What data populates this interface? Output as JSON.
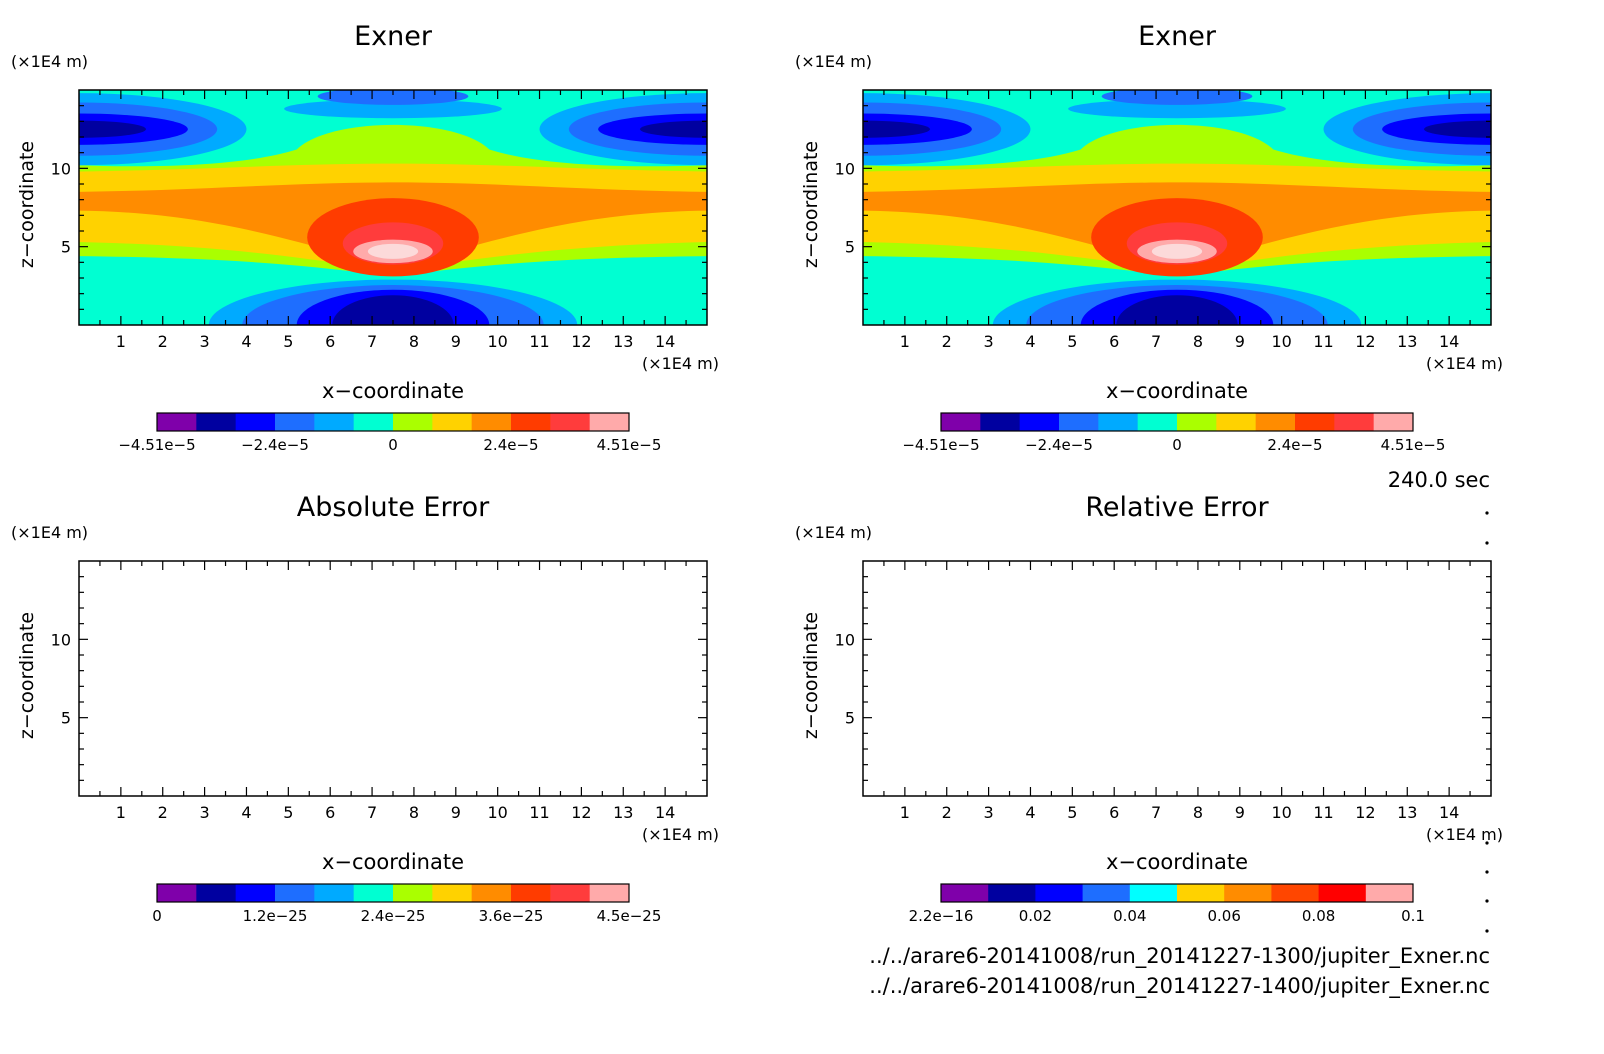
{
  "time_label": "240.0 sec",
  "file_labels": [
    "../../arare6-20141008/run_20141227-1300/jupiter_Exner.nc",
    "../../arare6-20141008/run_20141227-1400/jupiter_Exner.nc"
  ],
  "chart_data": [
    {
      "type": "heatmap",
      "title": "Exner",
      "xlabel": "x−coordinate",
      "ylabel": "z−coordinate",
      "x_unit": "(×1E4 m)",
      "y_unit": "(×1E4 m)",
      "xlim": [
        0,
        15
      ],
      "ylim": [
        0,
        15
      ],
      "x_ticks": [
        "1",
        "2",
        "3",
        "4",
        "5",
        "6",
        "7",
        "8",
        "9",
        "10",
        "11",
        "12",
        "13",
        "14"
      ],
      "y_ticks": [
        "5",
        "10"
      ],
      "colorbar": {
        "colors": [
          "#7f00aa",
          "#0000a0",
          "#0000ff",
          "#1e6eff",
          "#00aaff",
          "#00ffd2",
          "#aaff00",
          "#ffd200",
          "#ff8c00",
          "#ff3c00",
          "#ff3c3c",
          "#ffaaaa"
        ],
        "tick_labels": [
          "−4.51e−5",
          "−2.4e−5",
          "0",
          "2.4e−5",
          "4.51e−5"
        ]
      },
      "field": "filled"
    },
    {
      "type": "heatmap",
      "title": "Exner",
      "xlabel": "x−coordinate",
      "ylabel": "z−coordinate",
      "x_unit": "(×1E4 m)",
      "y_unit": "(×1E4 m)",
      "xlim": [
        0,
        15
      ],
      "ylim": [
        0,
        15
      ],
      "x_ticks": [
        "1",
        "2",
        "3",
        "4",
        "5",
        "6",
        "7",
        "8",
        "9",
        "10",
        "11",
        "12",
        "13",
        "14"
      ],
      "y_ticks": [
        "5",
        "10"
      ],
      "colorbar": {
        "colors": [
          "#7f00aa",
          "#0000a0",
          "#0000ff",
          "#1e6eff",
          "#00aaff",
          "#00ffd2",
          "#aaff00",
          "#ffd200",
          "#ff8c00",
          "#ff3c00",
          "#ff3c3c",
          "#ffaaaa"
        ],
        "tick_labels": [
          "−4.51e−5",
          "−2.4e−5",
          "0",
          "2.4e−5",
          "4.51e−5"
        ]
      },
      "field": "filled"
    },
    {
      "type": "heatmap",
      "title": "Absolute Error",
      "xlabel": "x−coordinate",
      "ylabel": "z−coordinate",
      "x_unit": "(×1E4 m)",
      "y_unit": "(×1E4 m)",
      "xlim": [
        0,
        15
      ],
      "ylim": [
        0,
        15
      ],
      "x_ticks": [
        "1",
        "2",
        "3",
        "4",
        "5",
        "6",
        "7",
        "8",
        "9",
        "10",
        "11",
        "12",
        "13",
        "14"
      ],
      "y_ticks": [
        "5",
        "10"
      ],
      "colorbar": {
        "colors": [
          "#7f00aa",
          "#0000a0",
          "#0000ff",
          "#1e6eff",
          "#00aaff",
          "#00ffd2",
          "#aaff00",
          "#ffd200",
          "#ff8c00",
          "#ff3c00",
          "#ff3c3c",
          "#ffaaaa"
        ],
        "tick_labels": [
          "0",
          "1.2e−25",
          "2.4e−25",
          "3.6e−25",
          "4.5e−25"
        ]
      },
      "field": "empty"
    },
    {
      "type": "heatmap",
      "title": "Relative Error",
      "xlabel": "x−coordinate",
      "ylabel": "z−coordinate",
      "x_unit": "(×1E4 m)",
      "y_unit": "(×1E4 m)",
      "xlim": [
        0,
        15
      ],
      "ylim": [
        0,
        15
      ],
      "x_ticks": [
        "1",
        "2",
        "3",
        "4",
        "5",
        "6",
        "7",
        "8",
        "9",
        "10",
        "11",
        "12",
        "13",
        "14"
      ],
      "y_ticks": [
        "5",
        "10"
      ],
      "colorbar": {
        "colors": [
          "#7f00aa",
          "#0000a0",
          "#0000ff",
          "#1e6eff",
          "#00ffff",
          "#ffd200",
          "#ff8c00",
          "#ff4600",
          "#ff0000",
          "#ffaaaa"
        ],
        "tick_labels": [
          "2.2e−16",
          "0.02",
          "0.04",
          "0.06",
          "0.08",
          "0.1"
        ]
      },
      "field": "empty"
    }
  ]
}
